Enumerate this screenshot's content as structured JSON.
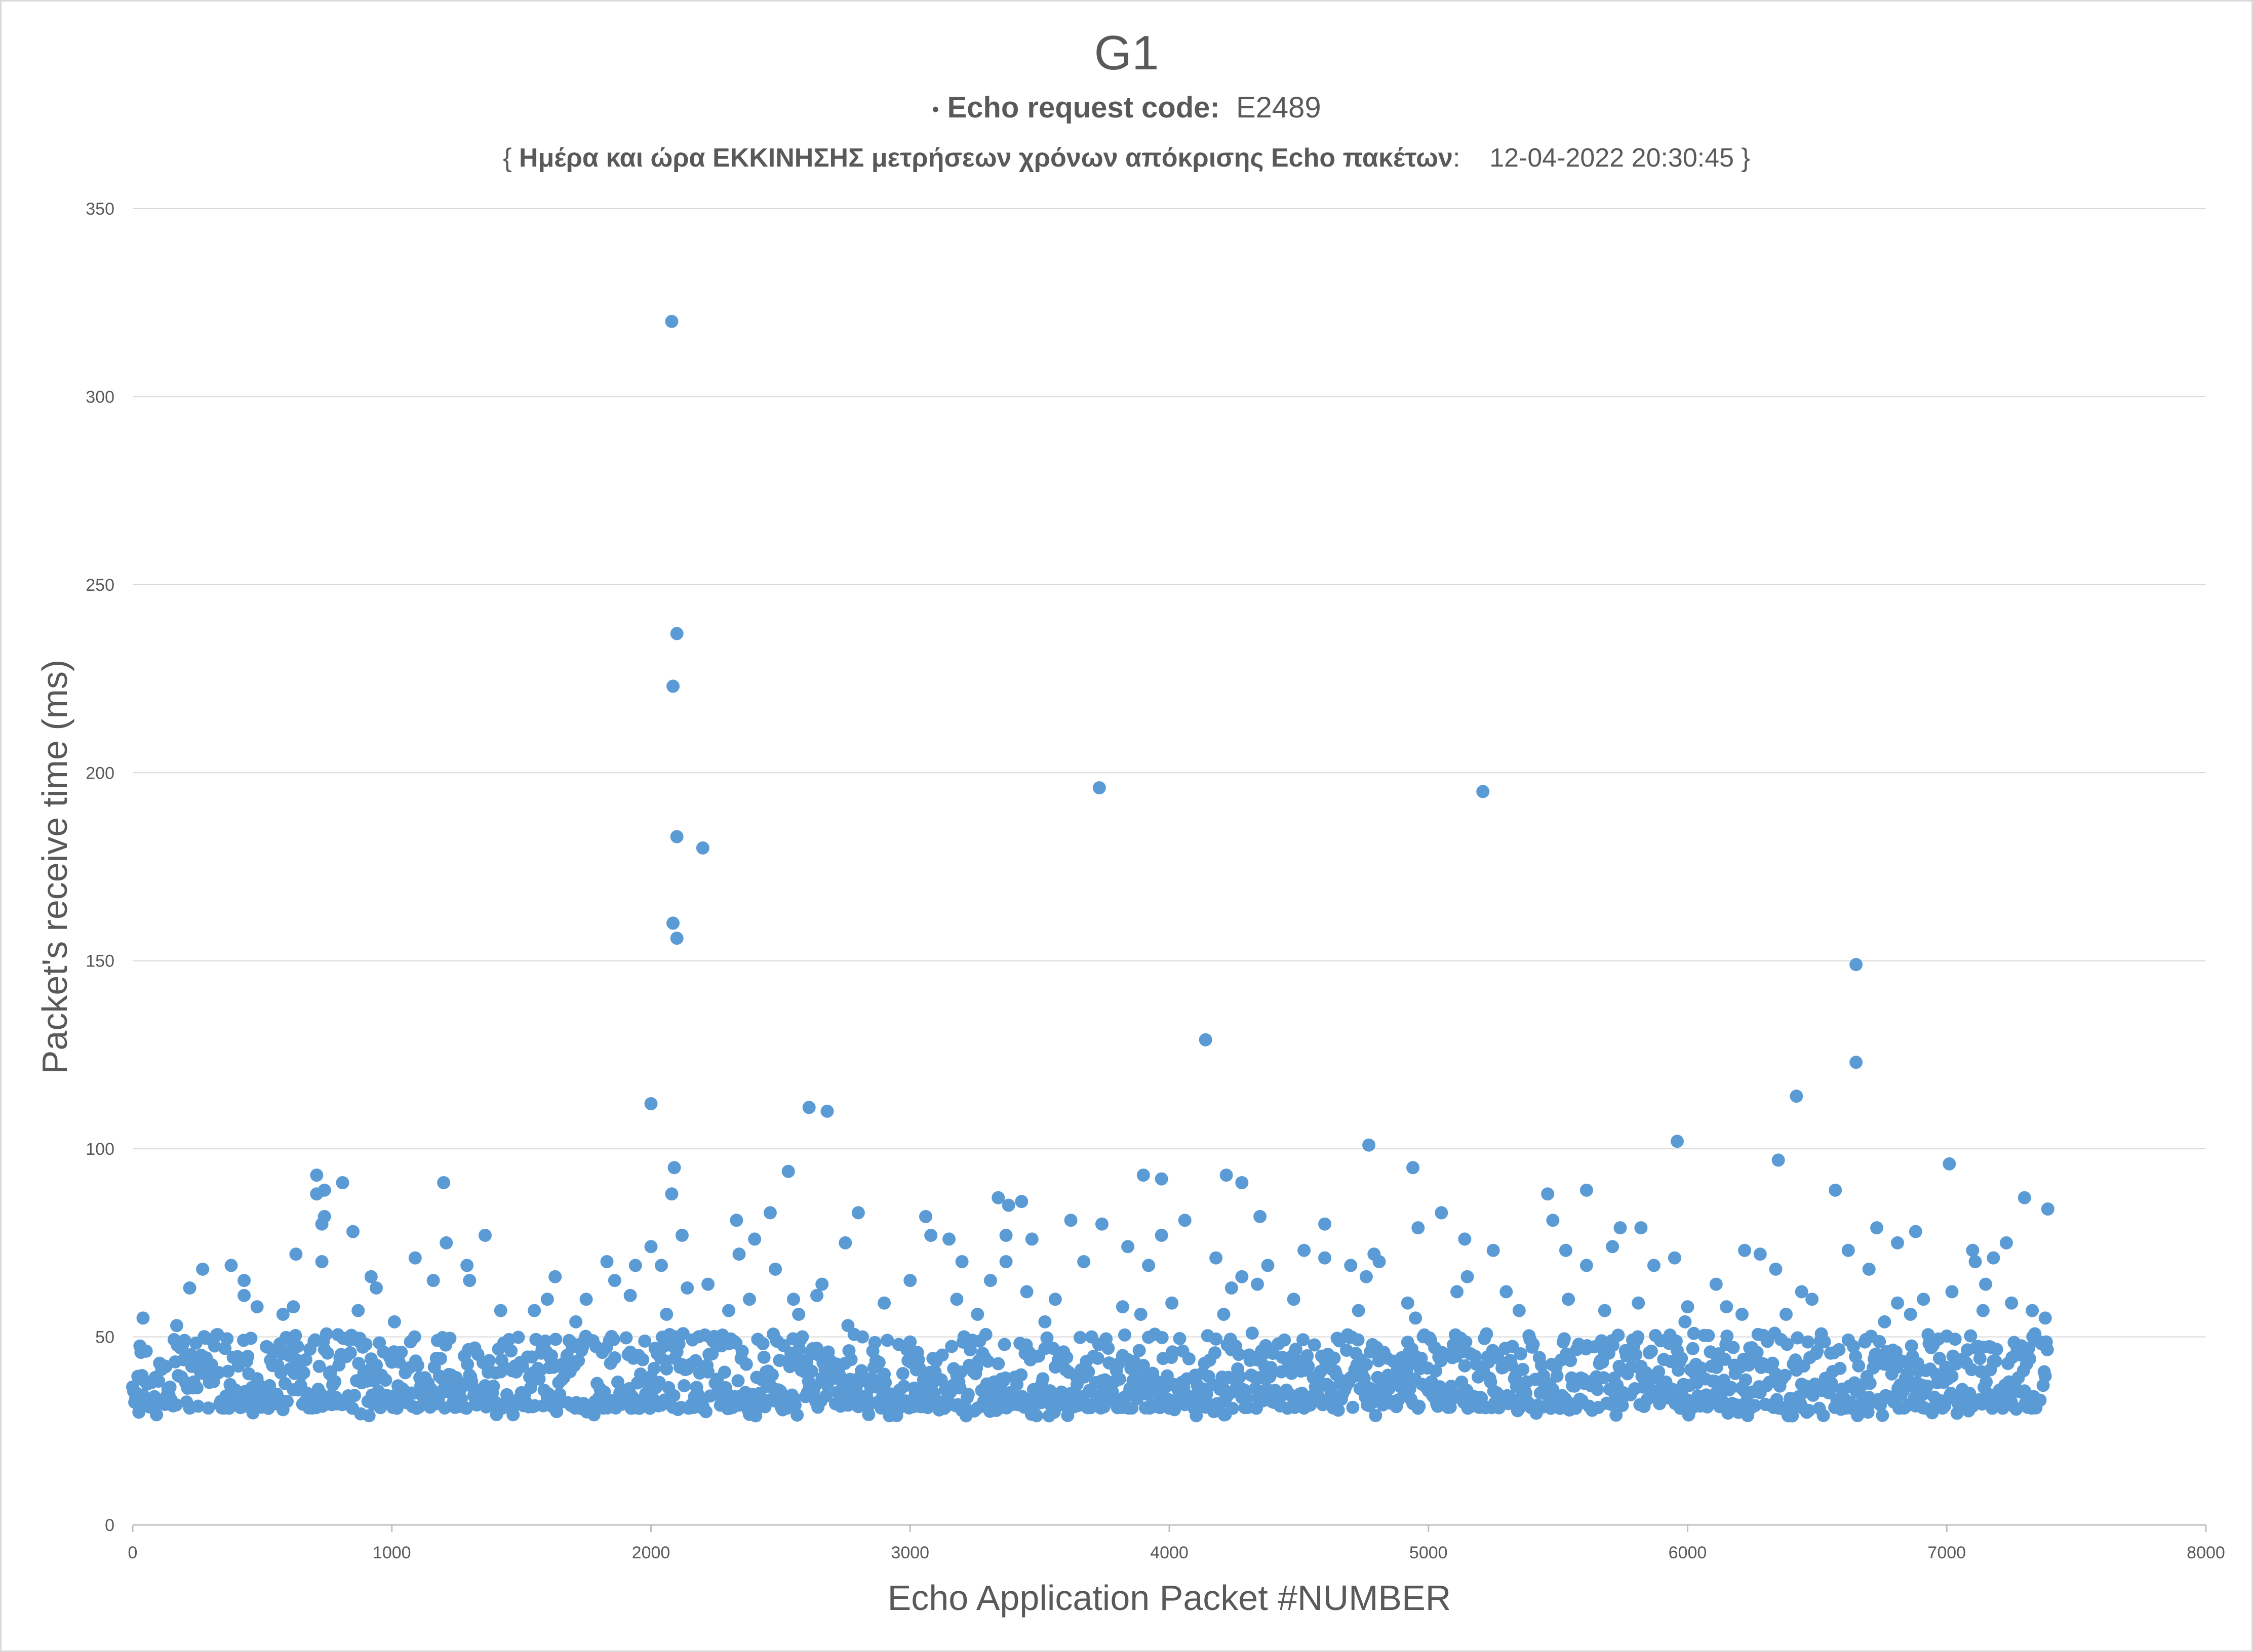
{
  "chart_data": {
    "type": "scatter",
    "title": "G1",
    "subtitle": {
      "bullet": "•",
      "label": "Echo request code:",
      "value": "E2489"
    },
    "subtitle2": {
      "open": "{",
      "label": "Ημέρα και ώρα ΕΚΚΙΝΗΣΗΣ μετρήσεων χρόνων απόκρισης Echo πακέτων",
      "colon": ":",
      "value": "12-04-2022 20:30:45",
      "close": "}"
    },
    "xlabel": "Echo Application Packet  #NUMBER",
    "ylabel": "Packet's receive time (ms)",
    "xlim": [
      0,
      8000
    ],
    "ylim": [
      0,
      350
    ],
    "xticks": [
      0,
      1000,
      2000,
      3000,
      4000,
      5000,
      6000,
      7000,
      8000
    ],
    "yticks": [
      0,
      50,
      100,
      150,
      200,
      250,
      300,
      350
    ],
    "grid": "horizontal",
    "legend": "none",
    "marker_color": "#5b9bd5",
    "series": [
      {
        "x_range": [
          0,
          7390
        ],
        "baseline_ms": [
          29,
          51
        ],
        "points": [
          [
            2080,
            320
          ],
          [
            2100,
            237
          ],
          [
            2085,
            223
          ],
          [
            2100,
            183
          ],
          [
            2200,
            180
          ],
          [
            2085,
            160
          ],
          [
            2100,
            156
          ],
          [
            3730,
            196
          ],
          [
            5210,
            195
          ],
          [
            6650,
            149
          ],
          [
            4140,
            129
          ],
          [
            6650,
            123
          ],
          [
            6420,
            114
          ],
          [
            2000,
            112
          ],
          [
            2610,
            111
          ],
          [
            2680,
            110
          ],
          [
            4770,
            101
          ],
          [
            5960,
            102
          ],
          [
            6350,
            97
          ],
          [
            7010,
            96
          ],
          [
            2090,
            95
          ],
          [
            2530,
            94
          ],
          [
            4940,
            95
          ],
          [
            710,
            93
          ],
          [
            3900,
            93
          ],
          [
            3970,
            92
          ],
          [
            4220,
            93
          ],
          [
            4280,
            91
          ],
          [
            810,
            91
          ],
          [
            1200,
            91
          ],
          [
            740,
            89
          ],
          [
            2080,
            88
          ],
          [
            5460,
            88
          ],
          [
            5610,
            89
          ],
          [
            6570,
            89
          ],
          [
            7300,
            87
          ],
          [
            710,
            88
          ],
          [
            3340,
            87
          ],
          [
            3380,
            85
          ],
          [
            3430,
            86
          ],
          [
            7390,
            84
          ],
          [
            2800,
            83
          ],
          [
            3060,
            82
          ],
          [
            4350,
            82
          ],
          [
            5050,
            83
          ],
          [
            2330,
            81
          ],
          [
            2460,
            83
          ],
          [
            3620,
            81
          ],
          [
            4060,
            81
          ],
          [
            5480,
            81
          ],
          [
            740,
            82
          ],
          [
            730,
            80
          ],
          [
            3740,
            80
          ],
          [
            4600,
            80
          ],
          [
            6880,
            78
          ],
          [
            850,
            78
          ],
          [
            1360,
            77
          ],
          [
            2120,
            77
          ],
          [
            3080,
            77
          ],
          [
            3370,
            77
          ],
          [
            3970,
            77
          ],
          [
            6730,
            79
          ],
          [
            5740,
            79
          ],
          [
            5820,
            79
          ],
          [
            4960,
            79
          ],
          [
            5140,
            76
          ],
          [
            1210,
            75
          ],
          [
            2400,
            76
          ],
          [
            2750,
            75
          ],
          [
            3470,
            76
          ],
          [
            3150,
            76
          ],
          [
            6810,
            75
          ],
          [
            7230,
            75
          ],
          [
            5710,
            74
          ],
          [
            2000,
            74
          ],
          [
            2340,
            72
          ],
          [
            5250,
            73
          ],
          [
            4520,
            73
          ],
          [
            630,
            72
          ],
          [
            3840,
            74
          ],
          [
            7100,
            73
          ],
          [
            5950,
            71
          ],
          [
            6220,
            73
          ],
          [
            6280,
            72
          ],
          [
            3670,
            70
          ],
          [
            730,
            70
          ],
          [
            1090,
            71
          ],
          [
            1830,
            70
          ],
          [
            2040,
            69
          ],
          [
            4180,
            71
          ],
          [
            4790,
            72
          ],
          [
            4600,
            71
          ],
          [
            5530,
            73
          ],
          [
            7180,
            71
          ],
          [
            6620,
            73
          ],
          [
            270,
            68
          ],
          [
            380,
            69
          ],
          [
            1290,
            69
          ],
          [
            1940,
            69
          ],
          [
            2480,
            68
          ],
          [
            3200,
            70
          ],
          [
            3370,
            70
          ],
          [
            4380,
            69
          ],
          [
            4700,
            69
          ],
          [
            4810,
            70
          ],
          [
            5610,
            69
          ],
          [
            5870,
            69
          ],
          [
            7110,
            70
          ],
          [
            6340,
            68
          ],
          [
            6700,
            68
          ],
          [
            3920,
            69
          ],
          [
            920,
            66
          ],
          [
            1160,
            65
          ],
          [
            1300,
            65
          ],
          [
            1630,
            66
          ],
          [
            1860,
            65
          ],
          [
            2220,
            64
          ],
          [
            2660,
            64
          ],
          [
            3000,
            65
          ],
          [
            3310,
            65
          ],
          [
            4280,
            66
          ],
          [
            4340,
            64
          ],
          [
            4760,
            66
          ],
          [
            5150,
            66
          ],
          [
            6110,
            64
          ],
          [
            7150,
            64
          ],
          [
            430,
            65
          ],
          [
            940,
            63
          ],
          [
            2140,
            63
          ],
          [
            2640,
            61
          ],
          [
            3450,
            62
          ],
          [
            4240,
            63
          ],
          [
            5110,
            62
          ],
          [
            5300,
            62
          ],
          [
            6440,
            62
          ],
          [
            6910,
            60
          ],
          [
            7020,
            62
          ],
          [
            220,
            63
          ],
          [
            430,
            61
          ],
          [
            480,
            58
          ],
          [
            1600,
            60
          ],
          [
            1750,
            60
          ],
          [
            1920,
            61
          ],
          [
            2380,
            60
          ],
          [
            2550,
            60
          ],
          [
            2900,
            59
          ],
          [
            3180,
            60
          ],
          [
            3560,
            60
          ],
          [
            3820,
            58
          ],
          [
            4010,
            59
          ],
          [
            4480,
            60
          ],
          [
            4920,
            59
          ],
          [
            5540,
            60
          ],
          [
            5810,
            59
          ],
          [
            6000,
            58
          ],
          [
            6150,
            58
          ],
          [
            6480,
            60
          ],
          [
            6810,
            59
          ],
          [
            7250,
            59
          ],
          [
            7330,
            57
          ],
          [
            580,
            56
          ],
          [
            620,
            58
          ],
          [
            870,
            57
          ],
          [
            1420,
            57
          ],
          [
            1550,
            57
          ],
          [
            2060,
            56
          ],
          [
            2300,
            57
          ],
          [
            2570,
            56
          ],
          [
            3260,
            56
          ],
          [
            3890,
            56
          ],
          [
            4210,
            56
          ],
          [
            4730,
            57
          ],
          [
            5350,
            57
          ],
          [
            5680,
            57
          ],
          [
            6210,
            56
          ],
          [
            6380,
            56
          ],
          [
            6860,
            56
          ],
          [
            7140,
            57
          ],
          [
            7380,
            55
          ],
          [
            40,
            55
          ],
          [
            170,
            53
          ],
          [
            1010,
            54
          ],
          [
            1710,
            54
          ],
          [
            2760,
            53
          ],
          [
            3520,
            54
          ],
          [
            4950,
            55
          ],
          [
            5990,
            54
          ],
          [
            6760,
            54
          ]
        ]
      }
    ]
  }
}
